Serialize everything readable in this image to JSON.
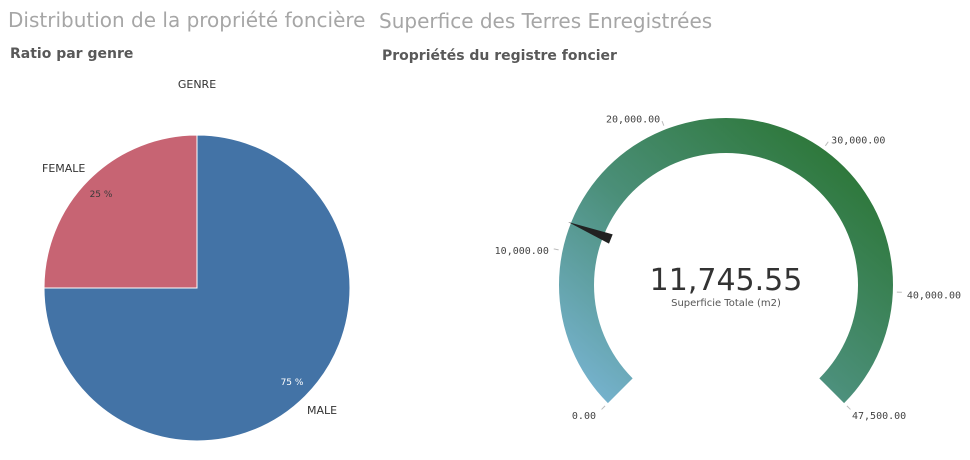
{
  "left": {
    "title": "Distribution de la propriété foncière",
    "subtitle": "Ratio par genre"
  },
  "right": {
    "title": "Superfice des Terres Enregistrées",
    "subtitle": "Propriétés du registre foncier"
  },
  "chart_data": [
    {
      "type": "pie",
      "legend_title": "GENRE",
      "slices": [
        {
          "label": "FEMALE",
          "value": 25,
          "display": "25 %",
          "color": "#c76473"
        },
        {
          "label": "MALE",
          "value": 75,
          "display": "75 %",
          "color": "#4373a6"
        }
      ]
    },
    {
      "type": "gauge",
      "value": 11745.55,
      "value_display": "11,745.55",
      "value_label": "Superficie Totale (m2)",
      "min": 0,
      "max": 47500,
      "ticks": [
        {
          "value": 0,
          "label": "0.00"
        },
        {
          "value": 10000,
          "label": "10,000.00"
        },
        {
          "value": 20000,
          "label": "20,000.00"
        },
        {
          "value": 30000,
          "label": "30,000.00"
        },
        {
          "value": 40000,
          "label": "40,000.00"
        },
        {
          "value": 47500,
          "label": "47,500.00"
        }
      ],
      "gradient_start": "#7db8dc",
      "gradient_mid": "#4b8f79",
      "gradient_end": "#236f23",
      "needle_color": "#222222"
    }
  ]
}
